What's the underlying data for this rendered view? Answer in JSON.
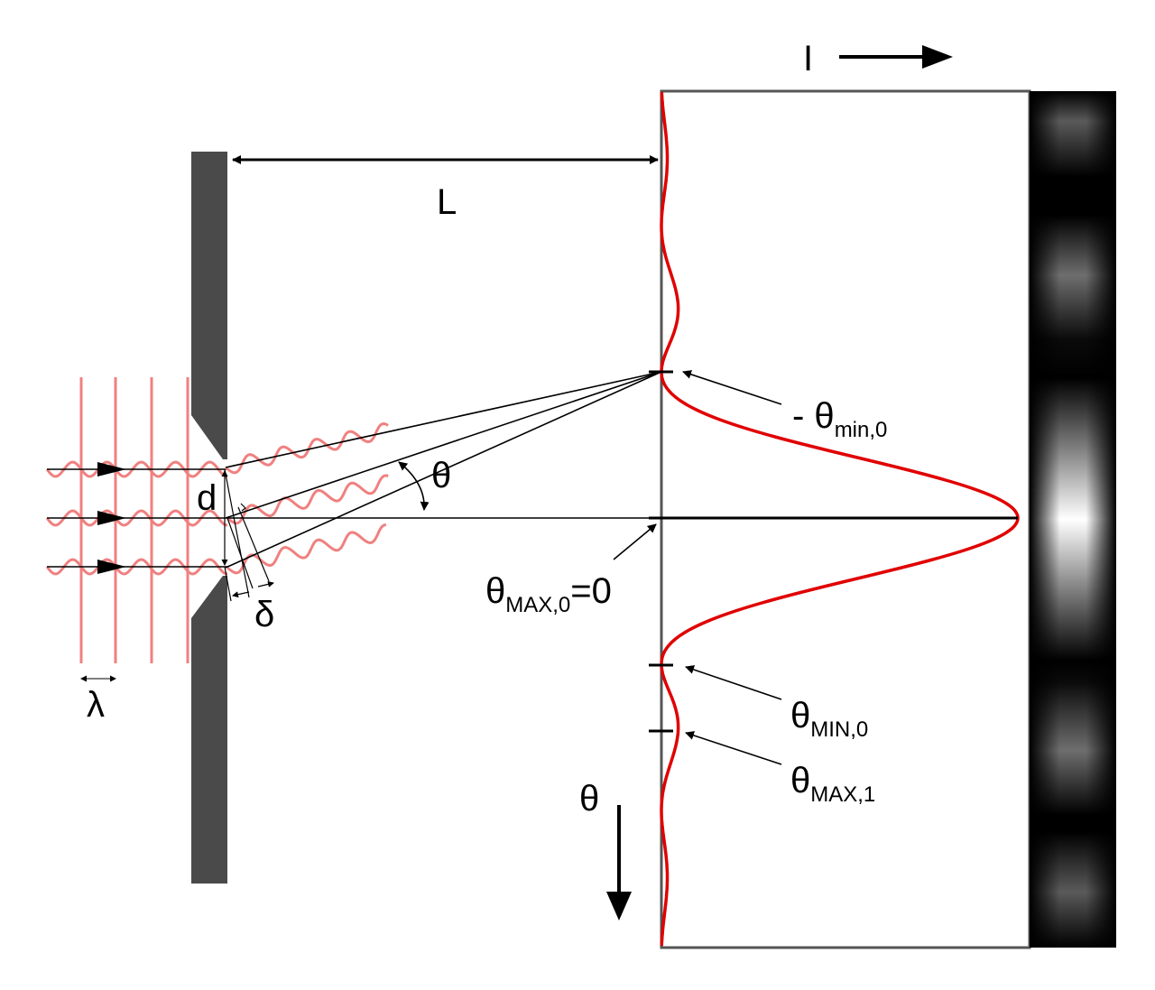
{
  "colors": {
    "barrier": "#4a4a4a",
    "wave": "#f08080",
    "intensity_curve": "#e00000",
    "ink": "#000000",
    "screen_frame": "#555555"
  },
  "labels": {
    "intensity_axis": "I",
    "distance": "L",
    "slit_width": "d",
    "path_difference": "δ",
    "wavelength": "λ",
    "angle": "θ",
    "theta_axis": "θ"
  },
  "markers": {
    "neg_min0": {
      "prefix": "- θ",
      "sub": "min,0",
      "suffix": ""
    },
    "max0": {
      "prefix": "θ",
      "sub": "MAX,0",
      "suffix": "=0"
    },
    "min0": {
      "prefix": "θ",
      "sub": "MIN,0",
      "suffix": ""
    },
    "max1": {
      "prefix": "θ",
      "sub": "MAX,1",
      "suffix": ""
    }
  },
  "icons": {
    "intensity_arrow": "arrow-right-icon",
    "theta_arrow": "arrow-down-icon"
  }
}
